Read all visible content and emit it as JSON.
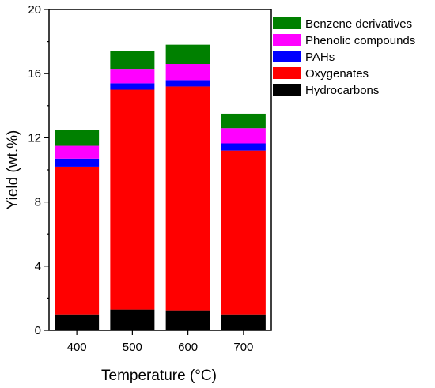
{
  "chart_data": {
    "type": "bar",
    "stacked": true,
    "categories": [
      "400",
      "500",
      "600",
      "700"
    ],
    "series": [
      {
        "name": "Hydrocarbons",
        "color": "#000000",
        "values": [
          1.0,
          1.3,
          1.25,
          1.0
        ]
      },
      {
        "name": "Oxygenates",
        "color": "#ff0000",
        "values": [
          9.2,
          13.7,
          13.95,
          10.2
        ]
      },
      {
        "name": "PAHs",
        "color": "#0000ff",
        "values": [
          0.5,
          0.4,
          0.4,
          0.45
        ]
      },
      {
        "name": "Phenolic compounds",
        "color": "#ff00ff",
        "values": [
          0.8,
          0.9,
          1.0,
          0.95
        ]
      },
      {
        "name": "Benzene derivatives",
        "color": "#008000",
        "values": [
          1.0,
          1.1,
          1.2,
          0.9
        ]
      }
    ],
    "xlabel": "Temperature (°C)",
    "ylabel": "Yield (wt.%)",
    "ylim": [
      0,
      20
    ],
    "yticks": [
      "0",
      "4",
      "8",
      "12",
      "16",
      "20"
    ],
    "grid": false,
    "legend_position": "top-right",
    "legend_order": [
      "Benzene derivatives",
      "Phenolic compounds",
      "PAHs",
      "Oxygenates",
      "Hydrocarbons"
    ]
  }
}
